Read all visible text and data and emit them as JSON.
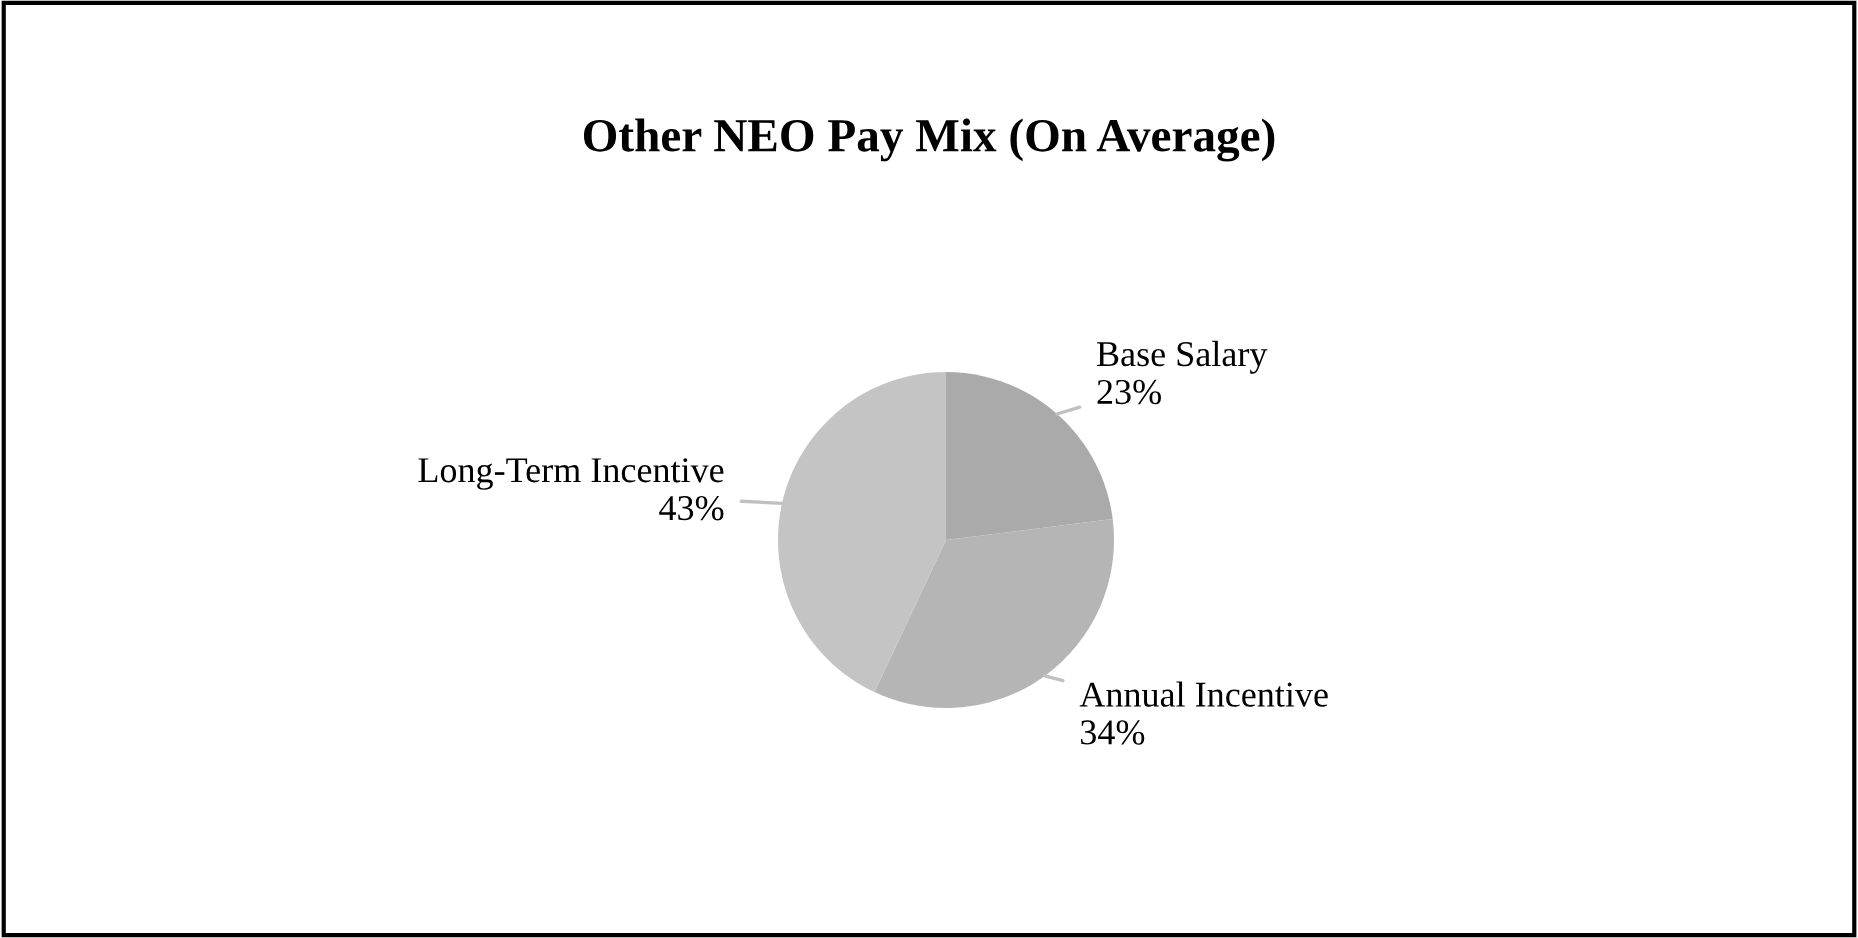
{
  "chart_data": {
    "type": "pie",
    "title": "Other NEO Pay Mix (On Average)",
    "categories": [
      "Base Salary",
      "Annual Incentive",
      "Long-Term Incentive"
    ],
    "values": [
      23,
      34,
      43
    ],
    "value_labels": [
      "23%",
      "34%",
      "43%"
    ],
    "colors": [
      "#aaaaaa",
      "#b5b5b5",
      "#c4c4c4"
    ],
    "legend": false
  }
}
